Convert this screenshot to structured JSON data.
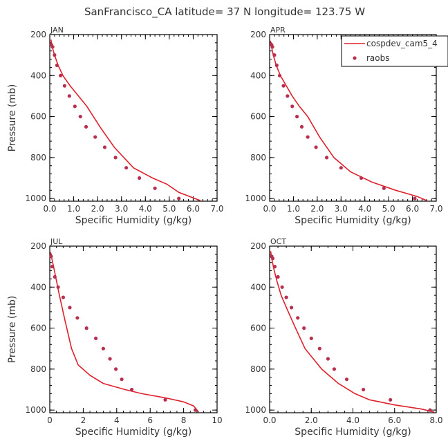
{
  "title": "SanFrancisco_CA  latitude= 37 N longitude= 123.75 W",
  "colors": {
    "model": "#e0202a",
    "obs": "#b83050",
    "axis": "#000000",
    "text": "#333333"
  },
  "legend": {
    "model_label": "cospdev_cam5_4",
    "obs_label": "raobs",
    "placement": "top-right of APR panel"
  },
  "chart_data": [
    {
      "type": "line",
      "panel": "JAN",
      "xlabel": "Specific Humidity (g/kg)",
      "ylabel": "Pressure (mb)",
      "xlim": [
        0,
        7
      ],
      "ylim": [
        200,
        1013
      ],
      "y_inverted": true,
      "xticks": [
        "0.0",
        "1.0",
        "2.0",
        "3.0",
        "4.0",
        "5.0",
        "6.0",
        "7.0"
      ],
      "xtick_values": [
        0,
        1,
        2,
        3,
        4,
        5,
        6,
        7
      ],
      "yticks": [
        "200",
        "400",
        "600",
        "800",
        "1000"
      ],
      "ytick_values": [
        200,
        400,
        600,
        800,
        1000
      ],
      "series": [
        {
          "name": "cospdev_cam5_4",
          "kind": "line",
          "x": [
            0.05,
            0.1,
            0.2,
            0.35,
            0.55,
            0.85,
            1.2,
            1.55,
            2.1,
            2.7,
            3.5,
            4.3,
            4.9,
            5.4,
            6.3
          ],
          "y": [
            225,
            260,
            300,
            350,
            400,
            450,
            500,
            550,
            650,
            750,
            850,
            900,
            930,
            970,
            1010
          ]
        },
        {
          "name": "raobs",
          "kind": "points",
          "x": [
            0.07,
            0.12,
            0.2,
            0.3,
            0.45,
            0.62,
            0.82,
            1.05,
            1.28,
            1.52,
            1.9,
            2.3,
            2.75,
            3.2,
            3.75,
            4.4,
            5.4
          ],
          "y": [
            250,
            260,
            300,
            350,
            400,
            450,
            500,
            550,
            600,
            650,
            700,
            750,
            800,
            850,
            900,
            950,
            1000
          ]
        }
      ]
    },
    {
      "type": "line",
      "panel": "APR",
      "xlabel": "Specific Humidity (g/kg)",
      "ylabel": "",
      "xlim": [
        0,
        7
      ],
      "ylim": [
        200,
        1013
      ],
      "y_inverted": true,
      "xticks": [
        "0.0",
        "1.0",
        "2.0",
        "3.0",
        "4.0",
        "5.0",
        "6.0",
        "7.0"
      ],
      "xtick_values": [
        0,
        1,
        2,
        3,
        4,
        5,
        6,
        7
      ],
      "yticks": [
        "200",
        "400",
        "600",
        "800",
        "1000"
      ],
      "ytick_values": [
        200,
        400,
        600,
        800,
        1000
      ],
      "series": [
        {
          "name": "cospdev_cam5_4",
          "kind": "line",
          "x": [
            0.03,
            0.08,
            0.15,
            0.28,
            0.45,
            0.7,
            0.95,
            1.25,
            1.6,
            2.1,
            2.7,
            3.4,
            4.3,
            5.3,
            6.2,
            6.6
          ],
          "y": [
            230,
            260,
            300,
            350,
            400,
            450,
            500,
            550,
            600,
            700,
            800,
            870,
            920,
            960,
            990,
            1010
          ]
        },
        {
          "name": "raobs",
          "kind": "points",
          "x": [
            0.08,
            0.12,
            0.2,
            0.3,
            0.42,
            0.58,
            0.75,
            0.95,
            1.15,
            1.35,
            1.6,
            1.95,
            2.4,
            3.0,
            3.85,
            4.8,
            6.1
          ],
          "y": [
            250,
            260,
            300,
            350,
            400,
            450,
            500,
            550,
            600,
            650,
            700,
            750,
            800,
            850,
            900,
            950,
            1000
          ]
        }
      ]
    },
    {
      "type": "line",
      "panel": "JUL",
      "xlabel": "Specific Humidity (g/kg)",
      "ylabel": "Pressure (mb)",
      "xlim": [
        0,
        10
      ],
      "ylim": [
        200,
        1013
      ],
      "y_inverted": true,
      "xticks": [
        "0",
        "2",
        "4",
        "6",
        "8",
        "10"
      ],
      "xtick_values": [
        0,
        2,
        4,
        6,
        8,
        10
      ],
      "yticks": [
        "200",
        "400",
        "600",
        "800",
        "1000"
      ],
      "ytick_values": [
        200,
        400,
        600,
        800,
        1000
      ],
      "series": [
        {
          "name": "cospdev_cam5_4",
          "kind": "line",
          "x": [
            0.05,
            0.15,
            0.3,
            0.55,
            0.9,
            1.3,
            1.7,
            2.4,
            3.2,
            4.5,
            5.5,
            6.9,
            8.0,
            8.6,
            8.9
          ],
          "y": [
            230,
            270,
            330,
            430,
            560,
            700,
            780,
            830,
            870,
            900,
            920,
            940,
            960,
            980,
            1010
          ]
        },
        {
          "name": "raobs",
          "kind": "points",
          "x": [
            0.08,
            0.15,
            0.3,
            0.5,
            0.8,
            1.2,
            1.65,
            2.2,
            2.75,
            3.2,
            3.6,
            3.95,
            4.3,
            4.9,
            6.9,
            8.7
          ],
          "y": [
            250,
            300,
            350,
            400,
            450,
            500,
            550,
            600,
            650,
            700,
            750,
            800,
            850,
            900,
            950,
            1000
          ]
        }
      ]
    },
    {
      "type": "line",
      "panel": "OCT",
      "xlabel": "Specific Humidity (g/kg)",
      "ylabel": "",
      "xlim": [
        0,
        8
      ],
      "ylim": [
        200,
        1013
      ],
      "y_inverted": true,
      "xticks": [
        "0.0",
        "2.0",
        "4.0",
        "6.0",
        "8.0"
      ],
      "xtick_values": [
        0,
        2,
        4,
        6,
        8
      ],
      "yticks": [
        "200",
        "400",
        "600",
        "800",
        "1000"
      ],
      "ytick_values": [
        200,
        400,
        600,
        800,
        1000
      ],
      "series": [
        {
          "name": "cospdev_cam5_4",
          "kind": "line",
          "x": [
            0.05,
            0.1,
            0.2,
            0.35,
            0.55,
            0.85,
            1.2,
            1.7,
            2.5,
            3.3,
            4.1,
            4.8,
            6.0,
            7.3,
            7.9
          ],
          "y": [
            225,
            260,
            310,
            370,
            440,
            510,
            590,
            700,
            800,
            870,
            920,
            950,
            975,
            995,
            1010
          ]
        },
        {
          "name": "raobs",
          "kind": "points",
          "x": [
            0.1,
            0.15,
            0.25,
            0.4,
            0.6,
            0.8,
            1.05,
            1.35,
            1.65,
            2.0,
            2.4,
            2.8,
            3.1,
            3.7,
            4.5,
            5.8,
            7.7
          ],
          "y": [
            250,
            260,
            300,
            350,
            400,
            450,
            500,
            550,
            600,
            650,
            700,
            750,
            800,
            850,
            900,
            950,
            1000
          ]
        }
      ]
    }
  ]
}
